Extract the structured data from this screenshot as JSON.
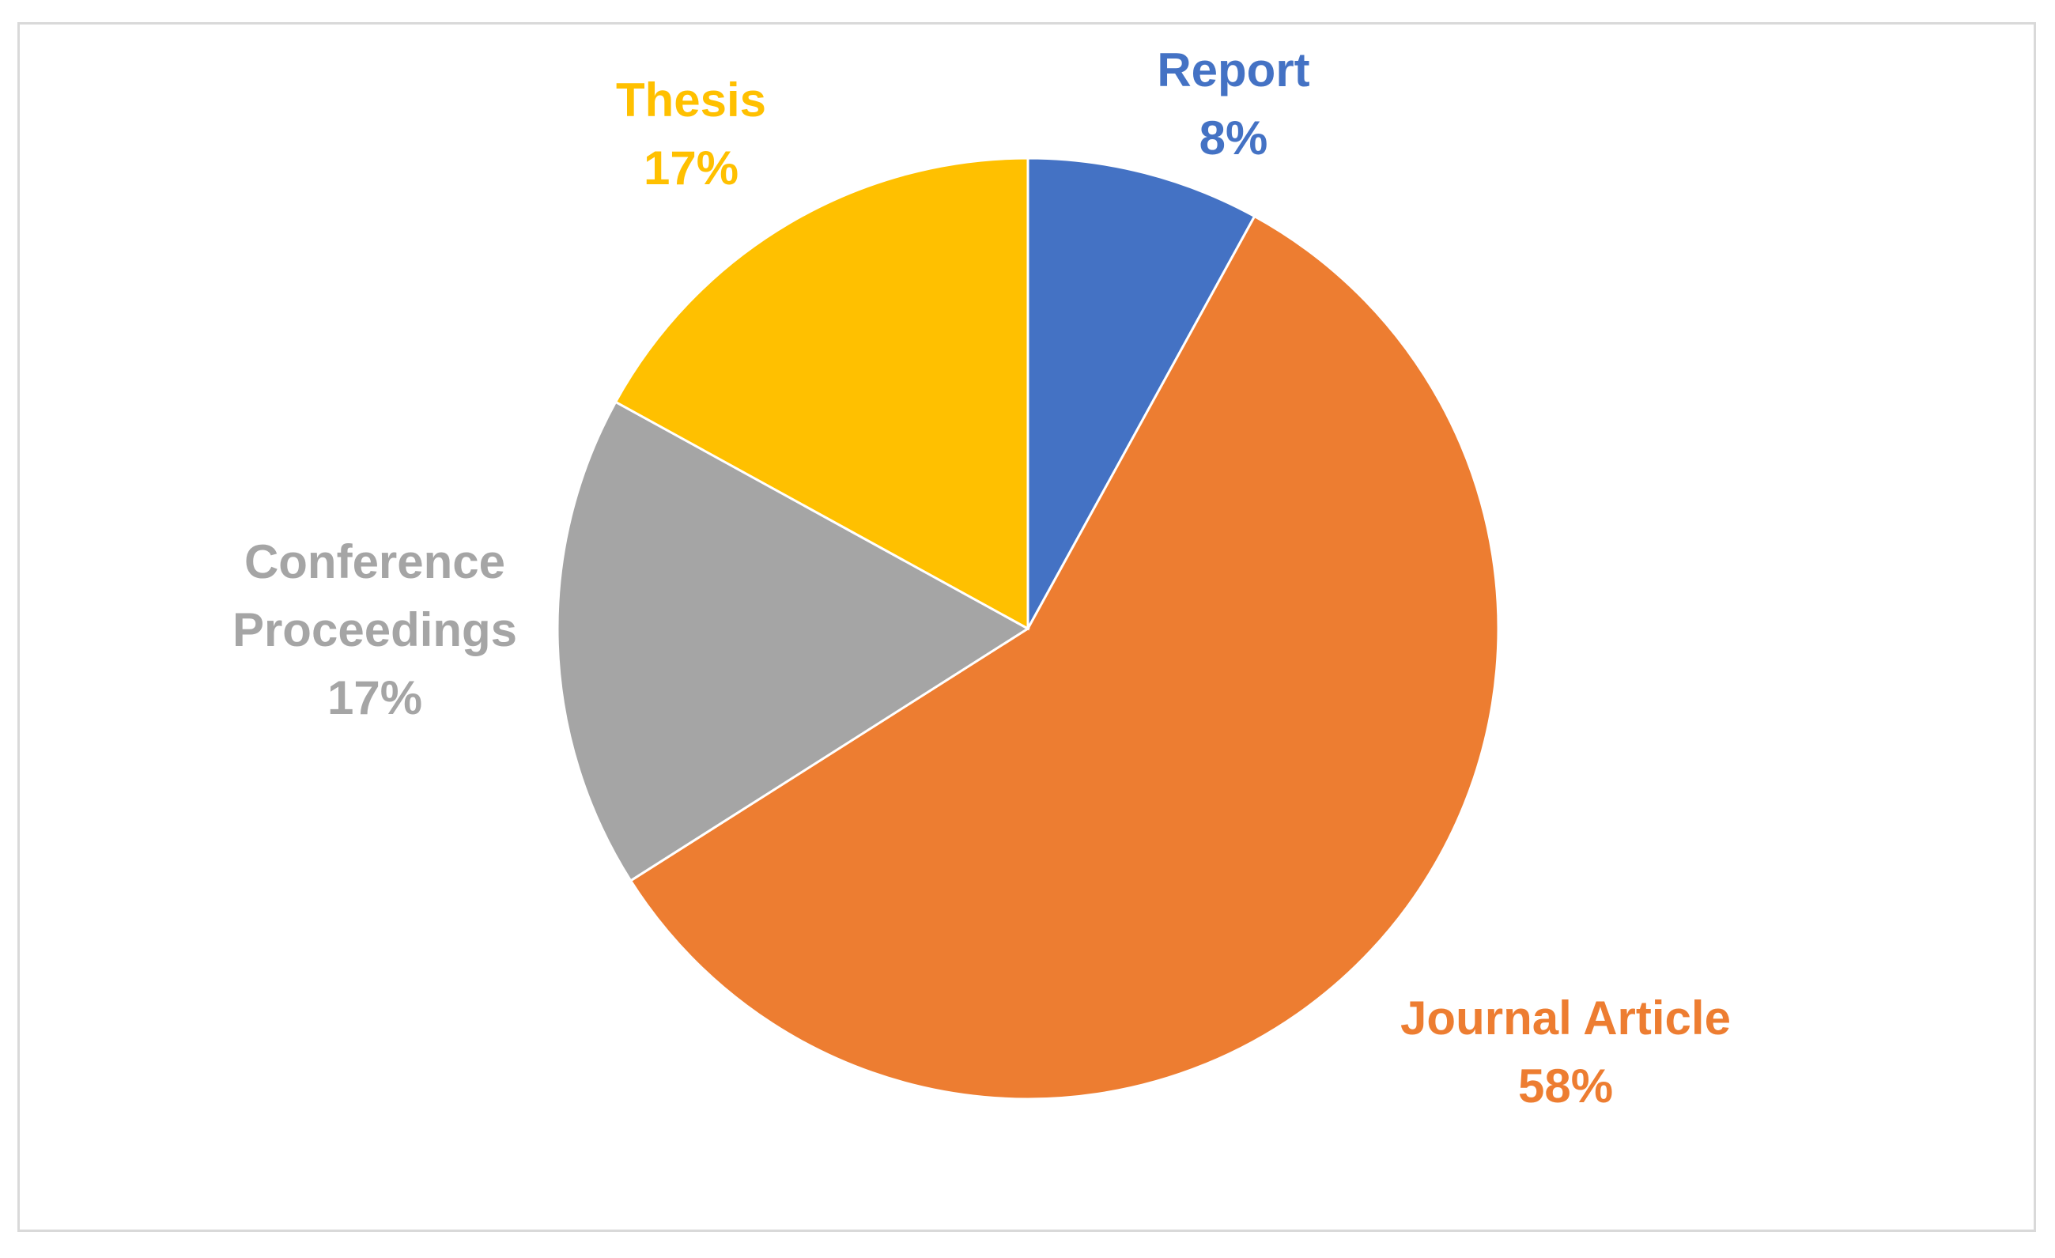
{
  "chart_data": {
    "type": "pie",
    "categories": [
      "Report",
      "Journal Article",
      "Conference Proceedings",
      "Thesis"
    ],
    "values": [
      8,
      58,
      17,
      17
    ],
    "labels": [
      {
        "category_lines": [
          "Report"
        ],
        "percent": "8%"
      },
      {
        "category_lines": [
          "Journal Article"
        ],
        "percent": "58%"
      },
      {
        "category_lines": [
          "Conference",
          "Proceedings"
        ],
        "percent": "17%"
      },
      {
        "category_lines": [
          "Thesis"
        ],
        "percent": "17%"
      }
    ],
    "colors": [
      "#4472C4",
      "#ED7D31",
      "#A5A5A5",
      "#FFC000"
    ],
    "start_angle": "12 o'clock",
    "direction": "clockwise",
    "legend": "none",
    "label_position": "outside-end"
  }
}
